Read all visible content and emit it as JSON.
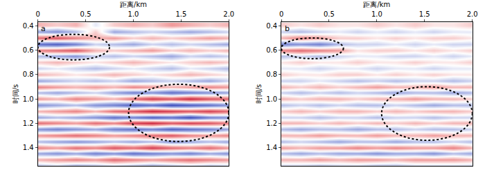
{
  "chart_data": [
    {
      "type": "heatmap",
      "title": "a",
      "x_label": "距离/km",
      "y_label": "时间/s",
      "x": [
        0,
        0.2,
        0.4,
        0.6,
        0.8,
        1.0,
        1.2,
        1.4,
        1.6,
        1.8,
        2.0
      ],
      "y": [
        0.4,
        0.45,
        0.5,
        0.55,
        0.6,
        0.65,
        0.7,
        0.75,
        0.8,
        0.85,
        0.9,
        0.95,
        1.0,
        1.05,
        1.1,
        1.15,
        1.2,
        1.25,
        1.3,
        1.35,
        1.4,
        1.45,
        1.5,
        1.55
      ],
      "z": [
        [
          0.3,
          0.2,
          0.3,
          -0.1,
          0.2,
          0.3,
          0.2,
          0.4,
          0.3,
          0.2,
          0.3
        ],
        [
          -0.4,
          -0.5,
          -0.3,
          0.2,
          -0.4,
          -0.3,
          -0.2,
          -0.3,
          -0.4,
          -0.3,
          -0.2
        ],
        [
          0.6,
          0.7,
          0.5,
          0.3,
          0.4,
          0.2,
          0.3,
          0.2,
          0.3,
          0.4,
          0.3
        ],
        [
          -0.7,
          -0.8,
          -0.6,
          -0.2,
          -0.3,
          -0.4,
          -0.2,
          -0.3,
          -0.2,
          -0.3,
          -0.4
        ],
        [
          0.5,
          0.6,
          0.7,
          0.3,
          0.2,
          0.3,
          0.4,
          0.2,
          0.3,
          0.2,
          0.3
        ],
        [
          -0.3,
          -0.4,
          -0.5,
          -0.2,
          -0.3,
          -0.2,
          -0.3,
          -0.4,
          -0.2,
          -0.3,
          -0.2
        ],
        [
          0.2,
          0.3,
          0.2,
          0.1,
          0.2,
          0.3,
          0.2,
          0.1,
          0.2,
          0.3,
          0.2
        ],
        [
          -0.2,
          -0.1,
          -0.2,
          -0.3,
          -0.2,
          -0.1,
          -0.2,
          -0.3,
          -0.1,
          -0.2,
          -0.3
        ],
        [
          0.3,
          0.2,
          0.1,
          0.2,
          0.3,
          0.2,
          0.1,
          0.2,
          0.3,
          0.2,
          0.1
        ],
        [
          -0.4,
          -0.3,
          -0.2,
          -0.3,
          -0.2,
          -0.4,
          -0.3,
          -0.2,
          -0.3,
          -0.4,
          -0.2
        ],
        [
          0.5,
          0.4,
          0.3,
          0.4,
          0.3,
          0.5,
          0.4,
          0.3,
          0.4,
          0.5,
          0.4
        ],
        [
          -0.3,
          -0.4,
          -0.3,
          -0.2,
          -0.4,
          -0.6,
          -0.5,
          -0.7,
          -0.6,
          -0.5,
          -0.4
        ],
        [
          0.4,
          0.3,
          0.5,
          0.4,
          0.3,
          0.6,
          0.8,
          0.7,
          0.9,
          0.7,
          0.6
        ],
        [
          -0.5,
          -0.4,
          -0.3,
          -0.5,
          -0.6,
          -0.8,
          -0.7,
          -0.9,
          -0.8,
          -0.7,
          -0.5
        ],
        [
          0.3,
          0.4,
          0.5,
          0.3,
          0.6,
          0.7,
          0.9,
          0.8,
          0.7,
          0.8,
          0.6
        ],
        [
          -0.4,
          -0.3,
          -0.4,
          -0.5,
          -0.7,
          -0.6,
          -0.8,
          -0.7,
          -0.9,
          -0.6,
          -0.5
        ],
        [
          0.6,
          0.5,
          0.4,
          0.6,
          0.5,
          0.8,
          0.9,
          0.7,
          0.8,
          0.7,
          0.5
        ],
        [
          -0.5,
          -0.6,
          -0.5,
          -0.4,
          -0.6,
          -0.7,
          -0.6,
          -0.8,
          -0.7,
          -0.6,
          -0.4
        ],
        [
          0.4,
          0.5,
          0.6,
          0.5,
          0.4,
          0.5,
          0.6,
          0.7,
          0.5,
          0.4,
          0.5
        ],
        [
          -0.3,
          -0.4,
          -0.5,
          -0.4,
          -0.3,
          -0.4,
          -0.3,
          -0.5,
          -0.4,
          -0.3,
          -0.4
        ],
        [
          0.5,
          0.4,
          0.6,
          0.5,
          0.7,
          0.6,
          0.8,
          0.6,
          0.5,
          0.6,
          0.4
        ],
        [
          -0.4,
          -0.5,
          -0.4,
          -0.6,
          -0.5,
          -0.7,
          -0.6,
          -0.5,
          -0.6,
          -0.4,
          -0.5
        ],
        [
          0.3,
          0.4,
          0.5,
          0.4,
          0.6,
          0.5,
          0.4,
          0.5,
          0.6,
          0.5,
          0.4
        ],
        [
          -0.3,
          -0.2,
          -0.4,
          -0.3,
          -0.2,
          -0.3,
          -0.4,
          -0.3,
          -0.2,
          -0.3,
          -0.2
        ]
      ],
      "zlim": [
        -1,
        1
      ],
      "xlim": [
        0,
        2.0
      ],
      "xticks": [
        0,
        0.5,
        {
          "value": 1.0,
          "label": "1.0"
        },
        1.5,
        {
          "value": 2.0,
          "label": "2.0"
        }
      ],
      "ylim": [
        0.37,
        1.55
      ],
      "yticks": [
        0.4,
        0.6,
        0.8,
        {
          "value": 1.0,
          "label": "1.0"
        },
        1.2,
        1.4
      ],
      "ellipses": [
        {
          "x": [
            0,
            0.75
          ],
          "y": [
            0.47,
            0.68
          ]
        },
        {
          "x": [
            0.95,
            2.0
          ],
          "y": [
            0.88,
            1.35
          ]
        }
      ]
    },
    {
      "type": "heatmap",
      "title": "b",
      "x_label": "距离/km",
      "y_label": "时间/s",
      "x": [
        0,
        0.2,
        0.4,
        0.6,
        0.8,
        1.0,
        1.2,
        1.4,
        1.6,
        1.8,
        2.0
      ],
      "y": [
        0.4,
        0.45,
        0.5,
        0.55,
        0.6,
        0.65,
        0.7,
        0.75,
        0.8,
        0.85,
        0.9,
        0.95,
        1.0,
        1.05,
        1.1,
        1.15,
        1.2,
        1.25,
        1.3,
        1.35,
        1.4,
        1.45,
        1.5,
        1.55
      ],
      "z": [
        [
          0.2,
          0.1,
          0.2,
          0.1,
          0.1,
          0.2,
          0.1,
          0.2,
          0.1,
          0.1,
          0.2
        ],
        [
          -0.2,
          -0.3,
          -0.2,
          -0.1,
          -0.2,
          -0.1,
          -0.2,
          -0.1,
          -0.2,
          -0.1,
          -0.1
        ],
        [
          0.3,
          0.5,
          0.4,
          0.2,
          0.2,
          0.1,
          0.2,
          0.1,
          0.2,
          0.2,
          0.1
        ],
        [
          -0.6,
          -0.5,
          -0.6,
          -0.3,
          -0.2,
          -0.2,
          -0.1,
          -0.2,
          -0.1,
          -0.2,
          -0.2
        ],
        [
          0.5,
          0.6,
          0.5,
          0.4,
          0.1,
          0.2,
          0.2,
          0.1,
          0.2,
          0.1,
          0.2
        ],
        [
          -0.3,
          -0.2,
          -0.3,
          -0.2,
          -0.1,
          -0.1,
          -0.2,
          -0.2,
          -0.1,
          -0.2,
          -0.1
        ],
        [
          0.1,
          0.2,
          0.1,
          0.1,
          0.2,
          0.1,
          0.1,
          0.2,
          0.1,
          0.1,
          0.2
        ],
        [
          -0.1,
          -0.1,
          -0.2,
          -0.1,
          -0.1,
          -0.2,
          -0.1,
          -0.1,
          -0.2,
          -0.1,
          -0.1
        ],
        [
          0.2,
          0.1,
          0.1,
          0.2,
          0.2,
          0.1,
          0.2,
          0.1,
          0.2,
          0.1,
          0.1
        ],
        [
          -0.2,
          -0.2,
          -0.1,
          -0.2,
          -0.3,
          -0.2,
          -0.3,
          -0.2,
          -0.2,
          -0.3,
          -0.2
        ],
        [
          0.3,
          0.2,
          0.3,
          0.2,
          0.3,
          0.4,
          0.3,
          0.3,
          0.4,
          0.3,
          0.3
        ],
        [
          -0.2,
          -0.3,
          -0.2,
          -0.3,
          -0.2,
          -0.3,
          -0.4,
          -0.3,
          -0.3,
          -0.4,
          -0.3
        ],
        [
          0.3,
          0.2,
          0.3,
          0.3,
          0.2,
          0.3,
          0.3,
          0.4,
          0.3,
          0.3,
          0.2
        ],
        [
          -0.3,
          -0.2,
          -0.3,
          -0.2,
          -0.3,
          -0.3,
          -0.2,
          -0.3,
          -0.4,
          -0.3,
          -0.3
        ],
        [
          0.2,
          0.3,
          0.2,
          0.3,
          0.3,
          0.2,
          0.3,
          0.2,
          0.3,
          0.3,
          0.2
        ],
        [
          -0.2,
          -0.2,
          -0.3,
          -0.2,
          -0.2,
          -0.3,
          -0.2,
          -0.2,
          -0.3,
          -0.2,
          -0.2
        ],
        [
          0.3,
          0.3,
          0.2,
          0.3,
          0.2,
          0.3,
          0.2,
          0.3,
          0.2,
          0.3,
          0.3
        ],
        [
          -0.3,
          -0.4,
          -0.3,
          -0.3,
          -0.4,
          -0.3,
          -0.3,
          -0.2,
          -0.3,
          -0.3,
          -0.2
        ],
        [
          0.3,
          0.3,
          0.4,
          0.3,
          0.3,
          0.4,
          0.3,
          0.3,
          0.4,
          0.3,
          0.3
        ],
        [
          -0.3,
          -0.2,
          -0.3,
          -0.4,
          -0.3,
          -0.3,
          -0.4,
          -0.3,
          -0.3,
          -0.2,
          -0.3
        ],
        [
          0.4,
          0.3,
          0.4,
          0.4,
          0.5,
          0.4,
          0.5,
          0.4,
          0.4,
          0.5,
          0.3
        ],
        [
          -0.3,
          -0.4,
          -0.3,
          -0.4,
          -0.4,
          -0.5,
          -0.4,
          -0.4,
          -0.5,
          -0.3,
          -0.4
        ],
        [
          0.3,
          0.3,
          0.4,
          0.3,
          0.4,
          0.4,
          0.3,
          0.4,
          0.4,
          0.4,
          0.3
        ],
        [
          -0.2,
          -0.2,
          -0.3,
          -0.2,
          -0.2,
          -0.3,
          -0.3,
          -0.2,
          -0.2,
          -0.2,
          -0.2
        ]
      ],
      "zlim": [
        -1,
        1
      ],
      "xlim": [
        0,
        2.0
      ],
      "xticks": [
        0,
        0.5,
        {
          "value": 1.0,
          "label": "1.0"
        },
        1.5,
        {
          "value": 2.0,
          "label": "2.0"
        }
      ],
      "ylim": [
        0.37,
        1.55
      ],
      "yticks": [
        0.4,
        0.6,
        0.8,
        {
          "value": 1.0,
          "label": "1.0"
        },
        1.2,
        1.4
      ],
      "ellipses": [
        {
          "x": [
            0,
            0.65
          ],
          "y": [
            0.5,
            0.67
          ]
        },
        {
          "x": [
            1.05,
            2.0
          ],
          "y": [
            0.9,
            1.34
          ]
        }
      ]
    }
  ]
}
